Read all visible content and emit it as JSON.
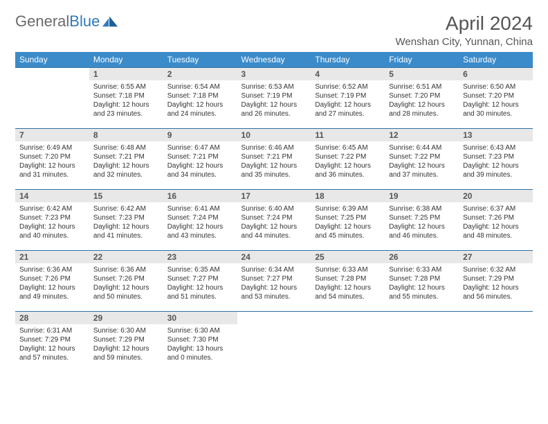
{
  "brand": {
    "text1": "General",
    "text2": "Blue"
  },
  "title": "April 2024",
  "location": "Wenshan City, Yunnan, China",
  "colors": {
    "header_bg": "#3b8bca",
    "header_text": "#ffffff",
    "row_border": "#2f6fa3",
    "daynum_bg": "#e8e8e8",
    "text": "#333333",
    "title_text": "#555555",
    "logo_gray": "#6a6a6a",
    "logo_blue": "#2f7abf"
  },
  "days_of_week": [
    "Sunday",
    "Monday",
    "Tuesday",
    "Wednesday",
    "Thursday",
    "Friday",
    "Saturday"
  ],
  "weeks": [
    [
      null,
      {
        "n": "1",
        "sr": "Sunrise: 6:55 AM",
        "ss": "Sunset: 7:18 PM",
        "d1": "Daylight: 12 hours",
        "d2": "and 23 minutes."
      },
      {
        "n": "2",
        "sr": "Sunrise: 6:54 AM",
        "ss": "Sunset: 7:18 PM",
        "d1": "Daylight: 12 hours",
        "d2": "and 24 minutes."
      },
      {
        "n": "3",
        "sr": "Sunrise: 6:53 AM",
        "ss": "Sunset: 7:19 PM",
        "d1": "Daylight: 12 hours",
        "d2": "and 26 minutes."
      },
      {
        "n": "4",
        "sr": "Sunrise: 6:52 AM",
        "ss": "Sunset: 7:19 PM",
        "d1": "Daylight: 12 hours",
        "d2": "and 27 minutes."
      },
      {
        "n": "5",
        "sr": "Sunrise: 6:51 AM",
        "ss": "Sunset: 7:20 PM",
        "d1": "Daylight: 12 hours",
        "d2": "and 28 minutes."
      },
      {
        "n": "6",
        "sr": "Sunrise: 6:50 AM",
        "ss": "Sunset: 7:20 PM",
        "d1": "Daylight: 12 hours",
        "d2": "and 30 minutes."
      }
    ],
    [
      {
        "n": "7",
        "sr": "Sunrise: 6:49 AM",
        "ss": "Sunset: 7:20 PM",
        "d1": "Daylight: 12 hours",
        "d2": "and 31 minutes."
      },
      {
        "n": "8",
        "sr": "Sunrise: 6:48 AM",
        "ss": "Sunset: 7:21 PM",
        "d1": "Daylight: 12 hours",
        "d2": "and 32 minutes."
      },
      {
        "n": "9",
        "sr": "Sunrise: 6:47 AM",
        "ss": "Sunset: 7:21 PM",
        "d1": "Daylight: 12 hours",
        "d2": "and 34 minutes."
      },
      {
        "n": "10",
        "sr": "Sunrise: 6:46 AM",
        "ss": "Sunset: 7:21 PM",
        "d1": "Daylight: 12 hours",
        "d2": "and 35 minutes."
      },
      {
        "n": "11",
        "sr": "Sunrise: 6:45 AM",
        "ss": "Sunset: 7:22 PM",
        "d1": "Daylight: 12 hours",
        "d2": "and 36 minutes."
      },
      {
        "n": "12",
        "sr": "Sunrise: 6:44 AM",
        "ss": "Sunset: 7:22 PM",
        "d1": "Daylight: 12 hours",
        "d2": "and 37 minutes."
      },
      {
        "n": "13",
        "sr": "Sunrise: 6:43 AM",
        "ss": "Sunset: 7:23 PM",
        "d1": "Daylight: 12 hours",
        "d2": "and 39 minutes."
      }
    ],
    [
      {
        "n": "14",
        "sr": "Sunrise: 6:42 AM",
        "ss": "Sunset: 7:23 PM",
        "d1": "Daylight: 12 hours",
        "d2": "and 40 minutes."
      },
      {
        "n": "15",
        "sr": "Sunrise: 6:42 AM",
        "ss": "Sunset: 7:23 PM",
        "d1": "Daylight: 12 hours",
        "d2": "and 41 minutes."
      },
      {
        "n": "16",
        "sr": "Sunrise: 6:41 AM",
        "ss": "Sunset: 7:24 PM",
        "d1": "Daylight: 12 hours",
        "d2": "and 43 minutes."
      },
      {
        "n": "17",
        "sr": "Sunrise: 6:40 AM",
        "ss": "Sunset: 7:24 PM",
        "d1": "Daylight: 12 hours",
        "d2": "and 44 minutes."
      },
      {
        "n": "18",
        "sr": "Sunrise: 6:39 AM",
        "ss": "Sunset: 7:25 PM",
        "d1": "Daylight: 12 hours",
        "d2": "and 45 minutes."
      },
      {
        "n": "19",
        "sr": "Sunrise: 6:38 AM",
        "ss": "Sunset: 7:25 PM",
        "d1": "Daylight: 12 hours",
        "d2": "and 46 minutes."
      },
      {
        "n": "20",
        "sr": "Sunrise: 6:37 AM",
        "ss": "Sunset: 7:26 PM",
        "d1": "Daylight: 12 hours",
        "d2": "and 48 minutes."
      }
    ],
    [
      {
        "n": "21",
        "sr": "Sunrise: 6:36 AM",
        "ss": "Sunset: 7:26 PM",
        "d1": "Daylight: 12 hours",
        "d2": "and 49 minutes."
      },
      {
        "n": "22",
        "sr": "Sunrise: 6:36 AM",
        "ss": "Sunset: 7:26 PM",
        "d1": "Daylight: 12 hours",
        "d2": "and 50 minutes."
      },
      {
        "n": "23",
        "sr": "Sunrise: 6:35 AM",
        "ss": "Sunset: 7:27 PM",
        "d1": "Daylight: 12 hours",
        "d2": "and 51 minutes."
      },
      {
        "n": "24",
        "sr": "Sunrise: 6:34 AM",
        "ss": "Sunset: 7:27 PM",
        "d1": "Daylight: 12 hours",
        "d2": "and 53 minutes."
      },
      {
        "n": "25",
        "sr": "Sunrise: 6:33 AM",
        "ss": "Sunset: 7:28 PM",
        "d1": "Daylight: 12 hours",
        "d2": "and 54 minutes."
      },
      {
        "n": "26",
        "sr": "Sunrise: 6:33 AM",
        "ss": "Sunset: 7:28 PM",
        "d1": "Daylight: 12 hours",
        "d2": "and 55 minutes."
      },
      {
        "n": "27",
        "sr": "Sunrise: 6:32 AM",
        "ss": "Sunset: 7:29 PM",
        "d1": "Daylight: 12 hours",
        "d2": "and 56 minutes."
      }
    ],
    [
      {
        "n": "28",
        "sr": "Sunrise: 6:31 AM",
        "ss": "Sunset: 7:29 PM",
        "d1": "Daylight: 12 hours",
        "d2": "and 57 minutes."
      },
      {
        "n": "29",
        "sr": "Sunrise: 6:30 AM",
        "ss": "Sunset: 7:29 PM",
        "d1": "Daylight: 12 hours",
        "d2": "and 59 minutes."
      },
      {
        "n": "30",
        "sr": "Sunrise: 6:30 AM",
        "ss": "Sunset: 7:30 PM",
        "d1": "Daylight: 13 hours",
        "d2": "and 0 minutes."
      },
      null,
      null,
      null,
      null
    ]
  ]
}
